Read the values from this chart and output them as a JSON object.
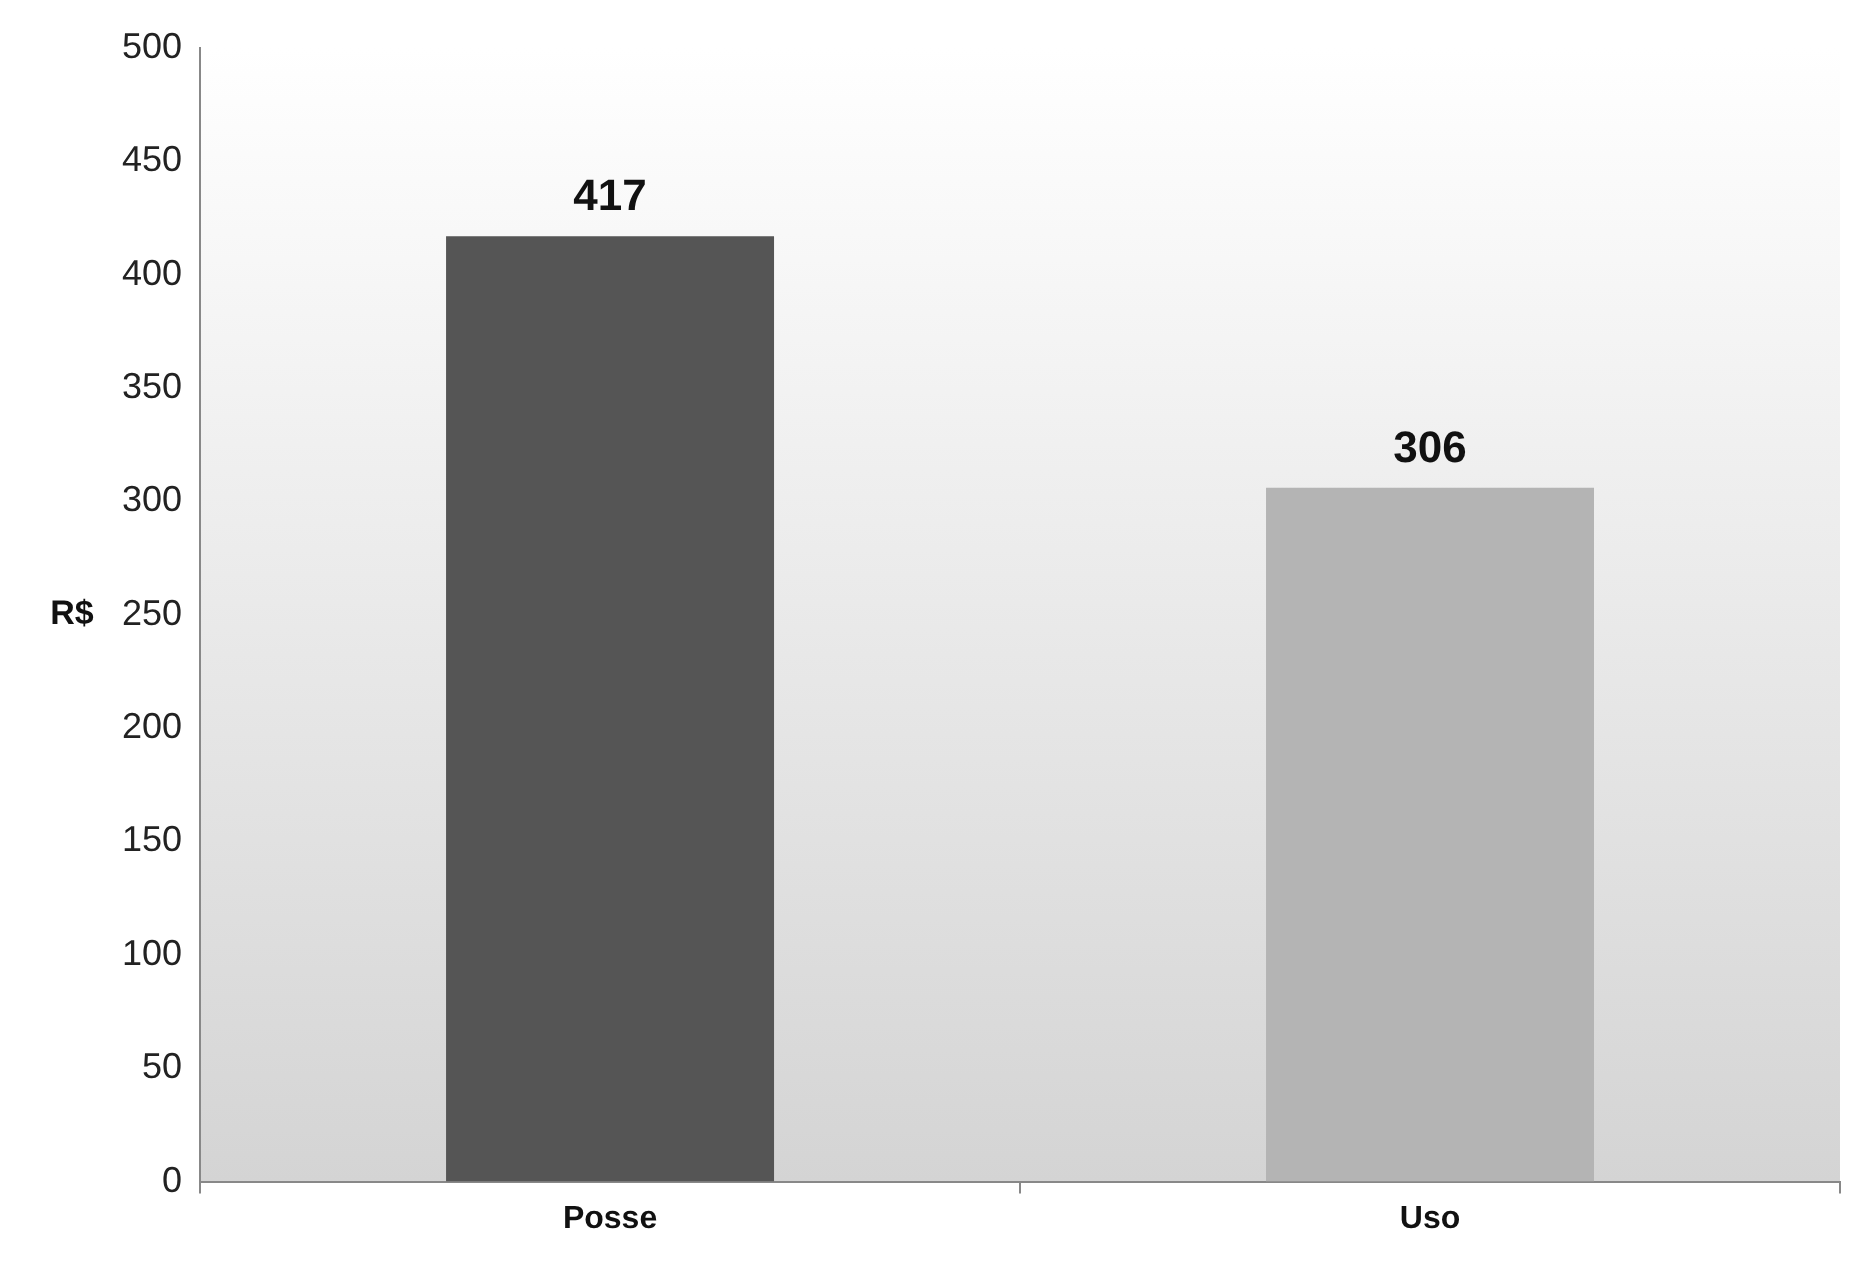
{
  "chart_data": {
    "type": "bar",
    "ylabel": "R$",
    "categories": [
      "Posse",
      "Uso"
    ],
    "values": [
      417,
      306
    ],
    "colors": [
      "#555555",
      "#b4b4b4"
    ],
    "ylim": [
      0,
      500
    ],
    "yticks": [
      0,
      50,
      100,
      150,
      200,
      250,
      300,
      350,
      400,
      450,
      500
    ],
    "grid": false,
    "data_labels": true,
    "legend": false
  }
}
